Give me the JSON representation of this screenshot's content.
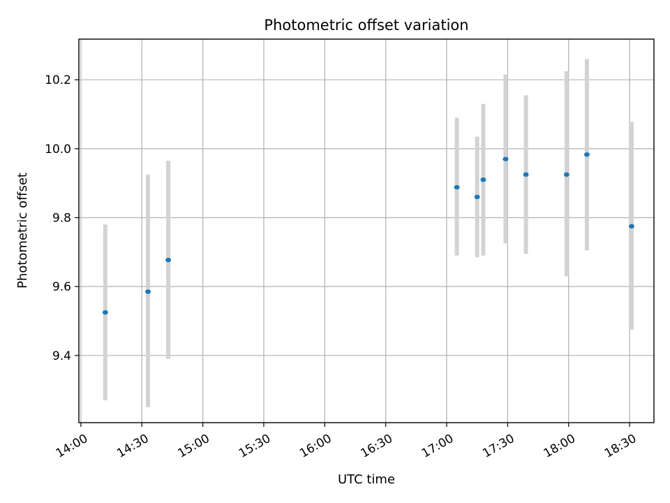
{
  "chart_data": {
    "type": "scatter",
    "title": "Photometric offset variation",
    "xlabel": "UTC time",
    "ylabel": "Photometric offset",
    "x_ticks": [
      "14:00",
      "14:30",
      "15:00",
      "15:30",
      "16:00",
      "16:30",
      "17:00",
      "17:30",
      "18:00",
      "18:30"
    ],
    "y_ticks": [
      "9.4",
      "9.6",
      "9.8",
      "10.0",
      "10.2"
    ],
    "xlim": [
      "13:59",
      "18:42"
    ],
    "ylim": [
      9.205,
      10.318
    ],
    "grid": true,
    "marker_color": "#1f77b4",
    "errorbar_color": "#d3d3d3",
    "series": [
      {
        "points": [
          {
            "x": "14:12",
            "y": 9.525,
            "ymin": 9.27,
            "ymax": 9.78
          },
          {
            "x": "14:33",
            "y": 9.585,
            "ymin": 9.25,
            "ymax": 9.925
          },
          {
            "x": "14:43",
            "y": 9.677,
            "ymin": 9.39,
            "ymax": 9.965
          },
          {
            "x": "17:05",
            "y": 9.888,
            "ymin": 9.69,
            "ymax": 10.09
          },
          {
            "x": "17:15",
            "y": 9.86,
            "ymin": 9.685,
            "ymax": 10.035
          },
          {
            "x": "17:18",
            "y": 9.91,
            "ymin": 9.69,
            "ymax": 10.13
          },
          {
            "x": "17:29",
            "y": 9.97,
            "ymin": 9.725,
            "ymax": 10.215
          },
          {
            "x": "17:39",
            "y": 9.925,
            "ymin": 9.695,
            "ymax": 10.155
          },
          {
            "x": "17:59",
            "y": 9.925,
            "ymin": 9.63,
            "ymax": 10.225
          },
          {
            "x": "18:09",
            "y": 9.983,
            "ymin": 9.705,
            "ymax": 10.26
          },
          {
            "x": "18:31",
            "y": 9.775,
            "ymin": 9.475,
            "ymax": 10.078
          }
        ]
      }
    ]
  }
}
